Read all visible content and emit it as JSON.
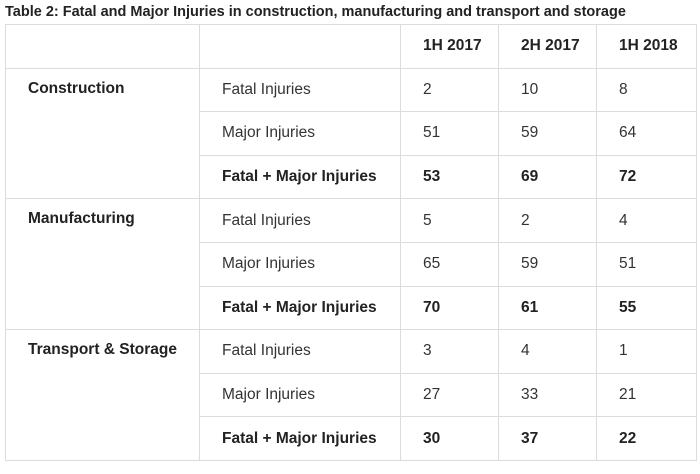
{
  "caption": "Table 2: Fatal and Major Injuries in construction, manufacturing and transport and storage",
  "table": {
    "columns": [
      "",
      "",
      "1H 2017",
      "2H 2017",
      "1H 2018"
    ],
    "groups": [
      {
        "category": "Construction",
        "rows": [
          {
            "label": "Fatal Injuries",
            "values": [
              "2",
              "10",
              "8"
            ]
          },
          {
            "label": "Major Injuries",
            "values": [
              "51",
              "59",
              "64"
            ]
          },
          {
            "label": "Fatal + Major Injuries",
            "values": [
              "53",
              "69",
              "72"
            ]
          }
        ]
      },
      {
        "category": "Manufacturing",
        "rows": [
          {
            "label": "Fatal Injuries",
            "values": [
              "5",
              "2",
              "4"
            ]
          },
          {
            "label": "Major Injuries",
            "values": [
              "65",
              "59",
              "51"
            ]
          },
          {
            "label": "Fatal + Major Injuries",
            "values": [
              "70",
              "61",
              "55"
            ]
          }
        ]
      },
      {
        "category": "Transport & Storage",
        "rows": [
          {
            "label": "Fatal Injuries",
            "values": [
              "3",
              "4",
              "1"
            ]
          },
          {
            "label": "Major Injuries",
            "values": [
              "27",
              "33",
              "21"
            ]
          },
          {
            "label": "Fatal + Major Injuries",
            "values": [
              "30",
              "37",
              "22"
            ]
          }
        ]
      }
    ]
  }
}
